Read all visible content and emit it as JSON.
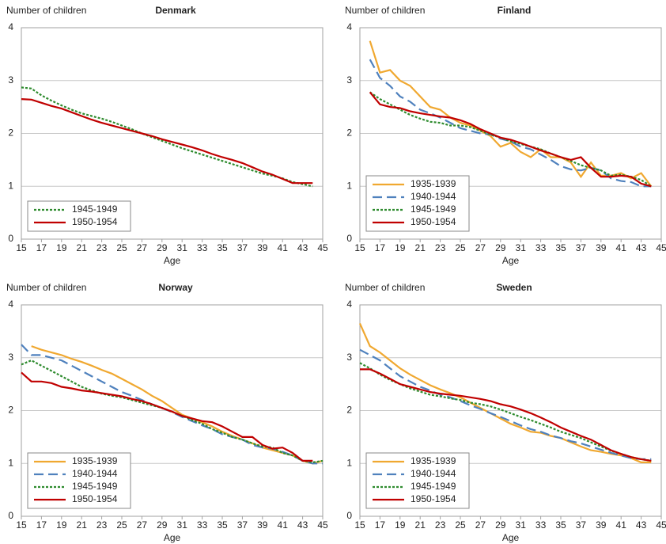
{
  "chart_data": [
    {
      "type": "line",
      "title": "Denmark",
      "ylabel": "Number of children",
      "xlabel": "Age",
      "x": [
        15,
        16,
        17,
        18,
        19,
        20,
        21,
        22,
        23,
        24,
        25,
        26,
        27,
        28,
        29,
        30,
        31,
        32,
        33,
        34,
        35,
        36,
        37,
        38,
        39,
        40,
        41,
        42,
        43,
        44,
        45
      ],
      "xlim": [
        15,
        45
      ],
      "xticks": [
        15,
        17,
        19,
        21,
        23,
        25,
        27,
        29,
        31,
        33,
        35,
        37,
        39,
        41,
        43,
        45
      ],
      "ylim": [
        0,
        4
      ],
      "yticks": [
        0,
        1,
        2,
        3,
        4
      ],
      "grid": true,
      "legend": "lower left",
      "series": [
        {
          "name": "1945-1949",
          "color": "#2e8b2e",
          "style": "dotted",
          "values": [
            2.87,
            2.85,
            2.72,
            2.62,
            2.53,
            2.45,
            2.38,
            2.33,
            2.28,
            2.22,
            2.15,
            2.08,
            2.0,
            1.93,
            1.86,
            1.79,
            1.72,
            1.66,
            1.6,
            1.54,
            1.48,
            1.42,
            1.36,
            1.3,
            1.24,
            1.2,
            1.15,
            1.08,
            1.04,
            1.0,
            null
          ]
        },
        {
          "name": "1950-1954",
          "color": "#c00000",
          "style": "solid",
          "values": [
            2.65,
            2.64,
            2.58,
            2.52,
            2.47,
            2.4,
            2.33,
            2.26,
            2.2,
            2.15,
            2.1,
            2.05,
            2.0,
            1.95,
            1.89,
            1.84,
            1.79,
            1.74,
            1.68,
            1.61,
            1.55,
            1.5,
            1.44,
            1.36,
            1.28,
            1.22,
            1.14,
            1.06,
            1.06,
            1.06,
            null
          ]
        }
      ]
    },
    {
      "type": "line",
      "title": "Finland",
      "ylabel": "Number of children",
      "xlabel": "Age",
      "x": [
        15,
        16,
        17,
        18,
        19,
        20,
        21,
        22,
        23,
        24,
        25,
        26,
        27,
        28,
        29,
        30,
        31,
        32,
        33,
        34,
        35,
        36,
        37,
        38,
        39,
        40,
        41,
        42,
        43,
        44,
        45
      ],
      "xlim": [
        15,
        45
      ],
      "xticks": [
        15,
        17,
        19,
        21,
        23,
        25,
        27,
        29,
        31,
        33,
        35,
        37,
        39,
        41,
        43,
        45
      ],
      "ylim": [
        0,
        4
      ],
      "yticks": [
        0,
        1,
        2,
        3,
        4
      ],
      "grid": true,
      "legend": "lower left",
      "series": [
        {
          "name": "1935-1939",
          "color": "#f0a830",
          "style": "solid",
          "values": [
            null,
            3.75,
            3.15,
            3.2,
            3.0,
            2.9,
            2.7,
            2.5,
            2.45,
            2.3,
            2.2,
            2.15,
            2.05,
            1.95,
            1.75,
            1.82,
            1.65,
            1.55,
            1.7,
            1.55,
            1.55,
            1.45,
            1.18,
            1.45,
            1.2,
            1.2,
            1.25,
            1.15,
            1.25,
            1.0,
            null
          ]
        },
        {
          "name": "1940-1944",
          "color": "#4f81bd",
          "style": "dashed",
          "values": [
            null,
            3.4,
            3.05,
            2.9,
            2.7,
            2.6,
            2.45,
            2.38,
            2.3,
            2.2,
            2.1,
            2.05,
            2.0,
            1.98,
            1.9,
            1.85,
            1.75,
            1.7,
            1.6,
            1.5,
            1.38,
            1.32,
            1.3,
            1.35,
            1.3,
            1.15,
            1.1,
            1.08,
            1.0,
            1.0,
            null
          ]
        },
        {
          "name": "1945-1949",
          "color": "#2e8b2e",
          "style": "dotted",
          "values": [
            null,
            2.78,
            2.65,
            2.55,
            2.45,
            2.35,
            2.28,
            2.22,
            2.2,
            2.15,
            2.15,
            2.12,
            2.05,
            1.98,
            1.92,
            1.85,
            1.8,
            1.75,
            1.7,
            1.62,
            1.55,
            1.48,
            1.4,
            1.35,
            1.3,
            1.2,
            1.22,
            1.18,
            1.12,
            1.0,
            null
          ]
        },
        {
          "name": "1950-1954",
          "color": "#c00000",
          "style": "solid",
          "values": [
            null,
            2.78,
            2.55,
            2.5,
            2.48,
            2.42,
            2.38,
            2.35,
            2.32,
            2.3,
            2.25,
            2.18,
            2.08,
            2.0,
            1.92,
            1.88,
            1.82,
            1.75,
            1.68,
            1.62,
            1.55,
            1.5,
            1.55,
            1.35,
            1.18,
            1.18,
            1.2,
            1.18,
            1.05,
            1.0,
            null
          ]
        }
      ]
    },
    {
      "type": "line",
      "title": "Norway",
      "ylabel": "Number of children",
      "xlabel": "Age",
      "x": [
        15,
        16,
        17,
        18,
        19,
        20,
        21,
        22,
        23,
        24,
        25,
        26,
        27,
        28,
        29,
        30,
        31,
        32,
        33,
        34,
        35,
        36,
        37,
        38,
        39,
        40,
        41,
        42,
        43,
        44,
        45
      ],
      "xlim": [
        15,
        45
      ],
      "xticks": [
        15,
        17,
        19,
        21,
        23,
        25,
        27,
        29,
        31,
        33,
        35,
        37,
        39,
        41,
        43,
        45
      ],
      "ylim": [
        0,
        4
      ],
      "yticks": [
        0,
        1,
        2,
        3,
        4
      ],
      "grid": true,
      "legend": "lower left",
      "series": [
        {
          "name": "1935-1939",
          "color": "#f0a830",
          "style": "solid",
          "values": [
            null,
            3.22,
            3.15,
            3.1,
            3.05,
            2.98,
            2.92,
            2.85,
            2.77,
            2.7,
            2.6,
            2.5,
            2.4,
            2.28,
            2.18,
            2.05,
            1.92,
            1.85,
            1.78,
            1.7,
            1.6,
            1.52,
            1.45,
            1.38,
            1.3,
            1.25,
            1.2,
            1.15,
            1.05,
            1.0,
            1.05
          ]
        },
        {
          "name": "1940-1944",
          "color": "#4f81bd",
          "style": "dashed",
          "values": [
            3.25,
            3.05,
            3.05,
            3.0,
            2.95,
            2.85,
            2.75,
            2.65,
            2.55,
            2.45,
            2.35,
            2.28,
            2.2,
            2.12,
            2.05,
            1.97,
            1.88,
            1.8,
            1.72,
            1.65,
            1.55,
            1.5,
            1.45,
            1.35,
            1.3,
            1.28,
            1.22,
            1.15,
            1.05,
            1.0,
            1.0
          ]
        },
        {
          "name": "1945-1949",
          "color": "#2e8b2e",
          "style": "dotted",
          "values": [
            2.87,
            2.95,
            2.85,
            2.75,
            2.65,
            2.55,
            2.45,
            2.38,
            2.32,
            2.28,
            2.25,
            2.2,
            2.15,
            2.1,
            2.05,
            1.98,
            1.9,
            1.82,
            1.75,
            1.65,
            1.58,
            1.5,
            1.45,
            1.38,
            1.32,
            1.3,
            1.2,
            1.15,
            1.05,
            1.02,
            1.05
          ]
        },
        {
          "name": "1950-1954",
          "color": "#c00000",
          "style": "solid",
          "values": [
            2.72,
            2.55,
            2.55,
            2.52,
            2.45,
            2.42,
            2.38,
            2.36,
            2.33,
            2.3,
            2.27,
            2.22,
            2.18,
            2.12,
            2.05,
            1.98,
            1.9,
            1.85,
            1.8,
            1.78,
            1.7,
            1.6,
            1.5,
            1.5,
            1.35,
            1.28,
            1.3,
            1.2,
            1.05,
            1.05,
            null
          ]
        }
      ]
    },
    {
      "type": "line",
      "title": "Sweden",
      "ylabel": "Number of children",
      "xlabel": "Age",
      "x": [
        15,
        16,
        17,
        18,
        19,
        20,
        21,
        22,
        23,
        24,
        25,
        26,
        27,
        28,
        29,
        30,
        31,
        32,
        33,
        34,
        35,
        36,
        37,
        38,
        39,
        40,
        41,
        42,
        43,
        44,
        45
      ],
      "xlim": [
        15,
        45
      ],
      "xticks": [
        15,
        17,
        19,
        21,
        23,
        25,
        27,
        29,
        31,
        33,
        35,
        37,
        39,
        41,
        43,
        45
      ],
      "ylim": [
        0,
        4
      ],
      "yticks": [
        0,
        1,
        2,
        3,
        4
      ],
      "grid": true,
      "legend": "lower left",
      "series": [
        {
          "name": "1935-1939",
          "color": "#f0a830",
          "style": "solid",
          "values": [
            3.65,
            3.22,
            3.1,
            2.95,
            2.8,
            2.68,
            2.58,
            2.48,
            2.4,
            2.33,
            2.25,
            2.15,
            2.05,
            1.95,
            1.85,
            1.75,
            1.68,
            1.6,
            1.58,
            1.52,
            1.48,
            1.4,
            1.32,
            1.25,
            1.22,
            1.18,
            1.15,
            1.1,
            1.02,
            1.02,
            null
          ]
        },
        {
          "name": "1940-1944",
          "color": "#4f81bd",
          "style": "dashed",
          "values": [
            3.15,
            3.05,
            2.95,
            2.8,
            2.65,
            2.55,
            2.45,
            2.38,
            2.3,
            2.25,
            2.18,
            2.1,
            2.03,
            1.95,
            1.88,
            1.8,
            1.72,
            1.65,
            1.6,
            1.53,
            1.48,
            1.42,
            1.38,
            1.32,
            1.26,
            1.2,
            1.15,
            1.1,
            1.08,
            1.08,
            null
          ]
        },
        {
          "name": "1945-1949",
          "color": "#2e8b2e",
          "style": "dotted",
          "values": [
            2.9,
            2.8,
            2.68,
            2.58,
            2.5,
            2.42,
            2.36,
            2.3,
            2.27,
            2.23,
            2.2,
            2.15,
            2.12,
            2.08,
            2.02,
            1.95,
            1.88,
            1.82,
            1.75,
            1.68,
            1.6,
            1.54,
            1.48,
            1.4,
            1.32,
            1.24,
            1.18,
            1.12,
            1.08,
            1.05,
            null
          ]
        },
        {
          "name": "1950-1954",
          "color": "#c00000",
          "style": "solid",
          "values": [
            2.78,
            2.78,
            2.7,
            2.6,
            2.5,
            2.45,
            2.4,
            2.35,
            2.32,
            2.3,
            2.28,
            2.25,
            2.22,
            2.18,
            2.12,
            2.08,
            2.02,
            1.95,
            1.87,
            1.78,
            1.68,
            1.6,
            1.52,
            1.45,
            1.35,
            1.25,
            1.18,
            1.12,
            1.08,
            1.05,
            null
          ]
        }
      ]
    }
  ]
}
